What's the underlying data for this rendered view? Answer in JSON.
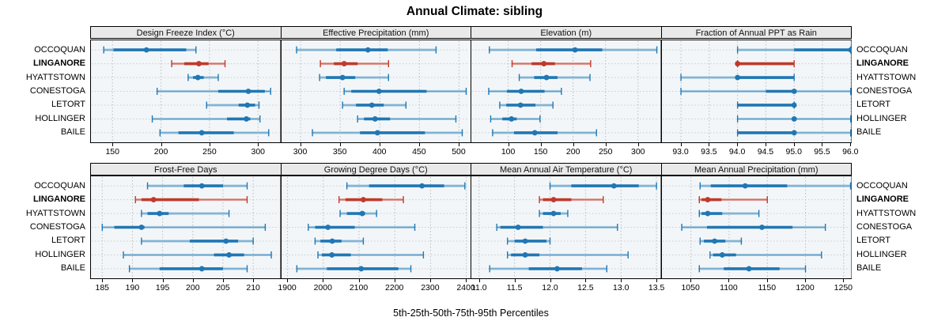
{
  "title": "Annual Climate: sibling",
  "caption": "5th-25th-50th-75th-95th Percentiles",
  "colors": {
    "blue": "#2077b4",
    "light_blue": "#a6cbe1",
    "red": "#c03a2b",
    "light_red": "#e0a49d",
    "grid": "#b9bdc1",
    "row_guide": "#c9cdd1",
    "strip_bg": "#e9e9e9",
    "panel_bg": "#f3f6f8",
    "border": "#000000"
  },
  "chart_data": {
    "type": "scatter",
    "subtype": "percentile-interval-dotplot",
    "title": "Annual Climate: sibling",
    "xlabel": "5th-25th-50th-75th-95th Percentiles",
    "grid": true,
    "legend_position": "none",
    "percentiles": [
      5,
      25,
      50,
      75,
      95
    ],
    "sites": [
      "OCCOQUAN",
      "LINGANORE",
      "HYATTSTOWN",
      "CONESTOGA",
      "LETORT",
      "HOLLINGER",
      "BAILE"
    ],
    "highlight_site": "LINGANORE",
    "panels": [
      {
        "label": "Design Freeze Index (°C)",
        "ticks": [
          150,
          200,
          250,
          300
        ],
        "tick_labels": [
          "150",
          "200",
          "250",
          "300"
        ],
        "xlim": [
          127,
          323
        ],
        "values": [
          [
            141,
            151,
            185,
            226,
            236
          ],
          [
            211,
            224,
            239,
            249,
            266
          ],
          [
            228,
            233,
            238,
            244,
            259
          ],
          [
            196,
            259,
            290,
            307,
            313
          ],
          [
            247,
            280,
            289,
            297,
            301
          ],
          [
            191,
            268,
            288,
            292,
            302
          ],
          [
            199,
            218,
            242,
            275,
            311
          ]
        ]
      },
      {
        "label": "Effective Precipitation (mm)",
        "ticks": [
          300,
          350,
          400,
          450,
          500
        ],
        "tick_labels": [
          "300",
          "350",
          "400",
          "450",
          "500"
        ],
        "xlim": [
          275,
          515
        ],
        "values": [
          [
            295,
            345,
            385,
            410,
            471
          ],
          [
            325,
            342,
            355,
            372,
            411
          ],
          [
            324,
            332,
            353,
            369,
            411
          ],
          [
            355,
            364,
            399,
            459,
            509
          ],
          [
            353,
            370,
            390,
            405,
            433
          ],
          [
            372,
            380,
            394,
            413,
            496
          ],
          [
            315,
            375,
            397,
            457,
            504
          ]
        ]
      },
      {
        "label": "Elevation (m)",
        "ticks": [
          100,
          150,
          200,
          250,
          300
        ],
        "tick_labels": [
          "100",
          "150",
          "200",
          "250",
          "300"
        ],
        "xlim": [
          42,
          335
        ],
        "values": [
          [
            71,
            143,
            203,
            245,
            329
          ],
          [
            106,
            136,
            155,
            172,
            227
          ],
          [
            117,
            140,
            159,
            176,
            226
          ],
          [
            70,
            98,
            120,
            156,
            182
          ],
          [
            87,
            97,
            119,
            142,
            169
          ],
          [
            73,
            91,
            105,
            113,
            149
          ],
          [
            76,
            109,
            141,
            176,
            236
          ]
        ]
      },
      {
        "label": "Fraction of Annual PPT as Rain",
        "ticks": [
          93.0,
          93.5,
          94.0,
          94.5,
          95.0,
          95.5,
          96.0
        ],
        "tick_labels": [
          "93.0",
          "93.5",
          "94.0",
          "94.5",
          "95.0",
          "95.5",
          "96.0"
        ],
        "xlim": [
          92.65,
          96.01
        ],
        "values": [
          [
            94,
            95,
            96,
            96,
            96
          ],
          [
            94,
            94,
            94,
            95,
            95
          ],
          [
            93,
            94,
            94,
            95,
            95
          ],
          [
            93,
            94.5,
            95,
            95,
            96
          ],
          [
            94,
            94,
            95,
            95,
            95
          ],
          [
            94,
            95,
            95,
            95,
            96
          ],
          [
            94,
            94,
            95,
            95,
            96
          ]
        ]
      },
      {
        "label": "Frost-Free Days",
        "ticks": [
          185,
          190,
          195,
          200,
          205,
          210
        ],
        "tick_labels": [
          "185",
          "190",
          "195",
          "200",
          "205",
          "210"
        ],
        "xlim": [
          183,
          214.5
        ],
        "values": [
          [
            192.5,
            198.5,
            201.5,
            205,
            209
          ],
          [
            190.5,
            191.5,
            193.5,
            201,
            209
          ],
          [
            191.5,
            192.5,
            194.5,
            196,
            206
          ],
          [
            185,
            187,
            191.5,
            192,
            212
          ],
          [
            191.5,
            199.5,
            205.5,
            207.5,
            210
          ],
          [
            188.5,
            203.5,
            206,
            208.5,
            213
          ],
          [
            189.5,
            194.5,
            201.5,
            205,
            209
          ]
        ]
      },
      {
        "label": "Growing Degree Days (°C)",
        "ticks": [
          1900,
          2000,
          2100,
          2200,
          2300,
          2400
        ],
        "tick_labels": [
          "1900",
          "2000",
          "2100",
          "2200",
          "2300",
          "2400"
        ],
        "xlim": [
          1881,
          2413
        ],
        "values": [
          [
            2066,
            2128,
            2276,
            2338,
            2396
          ],
          [
            2044,
            2062,
            2112,
            2165,
            2224
          ],
          [
            2047,
            2066,
            2109,
            2117,
            2149
          ],
          [
            1958,
            1977,
            2013,
            2088,
            2256
          ],
          [
            1977,
            1992,
            2025,
            2051,
            2112
          ],
          [
            1985,
            1996,
            2024,
            2077,
            2280
          ],
          [
            1926,
            2010,
            2106,
            2210,
            2245
          ]
        ]
      },
      {
        "label": "Mean Annual Air Temperature (°C)",
        "ticks": [
          11.0,
          11.5,
          12.0,
          12.5,
          13.0,
          13.5
        ],
        "tick_labels": [
          "11.0",
          "11.5",
          "12.0",
          "12.5",
          "13.0",
          "13.5"
        ],
        "xlim": [
          10.88,
          13.56
        ],
        "values": [
          [
            12.0,
            12.3,
            12.9,
            13.25,
            13.5
          ],
          [
            11.85,
            11.9,
            12.05,
            12.3,
            12.75
          ],
          [
            11.85,
            11.9,
            12.05,
            12.15,
            12.25
          ],
          [
            11.25,
            11.3,
            11.55,
            11.9,
            12.95
          ],
          [
            11.4,
            11.5,
            11.65,
            11.95,
            12.0
          ],
          [
            11.4,
            11.45,
            11.65,
            11.85,
            13.1
          ],
          [
            11.15,
            11.7,
            12.1,
            12.45,
            12.8
          ]
        ]
      },
      {
        "label": "Mean Annual Precipitation (mm)",
        "ticks": [
          1050,
          1100,
          1150,
          1200,
          1250
        ],
        "tick_labels": [
          "1050",
          "1100",
          "1150",
          "1200",
          "1250"
        ],
        "xlim": [
          1011,
          1260
        ],
        "values": [
          [
            1062,
            1076,
            1121,
            1176,
            1259
          ],
          [
            1061,
            1064,
            1072,
            1090,
            1150
          ],
          [
            1061,
            1064,
            1072,
            1091,
            1139
          ],
          [
            1038,
            1071,
            1143,
            1183,
            1226
          ],
          [
            1062,
            1067,
            1081,
            1095,
            1116
          ],
          [
            1075,
            1079,
            1091,
            1109,
            1221
          ],
          [
            1061,
            1093,
            1126,
            1166,
            1200
          ]
        ]
      }
    ]
  }
}
